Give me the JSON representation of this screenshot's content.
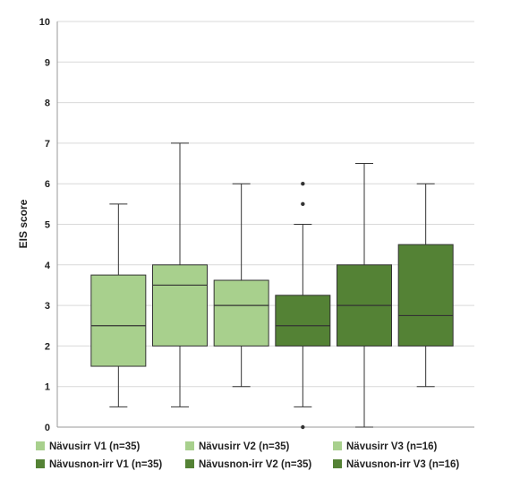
{
  "chart_data": {
    "type": "box",
    "ylabel": "EIS score",
    "ylim": [
      0,
      10
    ],
    "yticks": [
      "0",
      "1",
      "2",
      "3",
      "4",
      "5",
      "6",
      "7",
      "8",
      "9",
      "10"
    ],
    "grid": true,
    "legend_position": "bottom",
    "series": [
      {
        "name": "Nävusirr V1 (n=35)",
        "color": "#a8d08d",
        "min": 0.5,
        "q1": 1.5,
        "median": 2.5,
        "q3": 3.75,
        "max": 5.5,
        "outliers": []
      },
      {
        "name": "Nävusirr V2 (n=35)",
        "color": "#a8d08d",
        "min": 0.5,
        "q1": 2.0,
        "median": 3.5,
        "q3": 4.0,
        "max": 7.0,
        "outliers": []
      },
      {
        "name": "Nävusirr V3 (n=16)",
        "color": "#a8d08d",
        "min": 1.0,
        "q1": 2.0,
        "median": 3.0,
        "q3": 3.62,
        "max": 6.0,
        "outliers": []
      },
      {
        "name": "Nävusnon-irr V1 (n=35)",
        "color": "#548235",
        "min": 0.5,
        "q1": 2.0,
        "median": 2.5,
        "q3": 3.25,
        "max": 5.0,
        "outliers": [
          0.0,
          5.5,
          6.0
        ]
      },
      {
        "name": "Nävusnon-irr V2 (n=35)",
        "color": "#548235",
        "min": 0.0,
        "q1": 2.0,
        "median": 3.0,
        "q3": 4.0,
        "max": 6.5,
        "outliers": []
      },
      {
        "name": "Nävusnon-irr V3 (n=16)",
        "color": "#548235",
        "min": 1.0,
        "q1": 2.0,
        "median": 2.75,
        "q3": 4.5,
        "max": 6.0,
        "outliers": []
      }
    ]
  }
}
